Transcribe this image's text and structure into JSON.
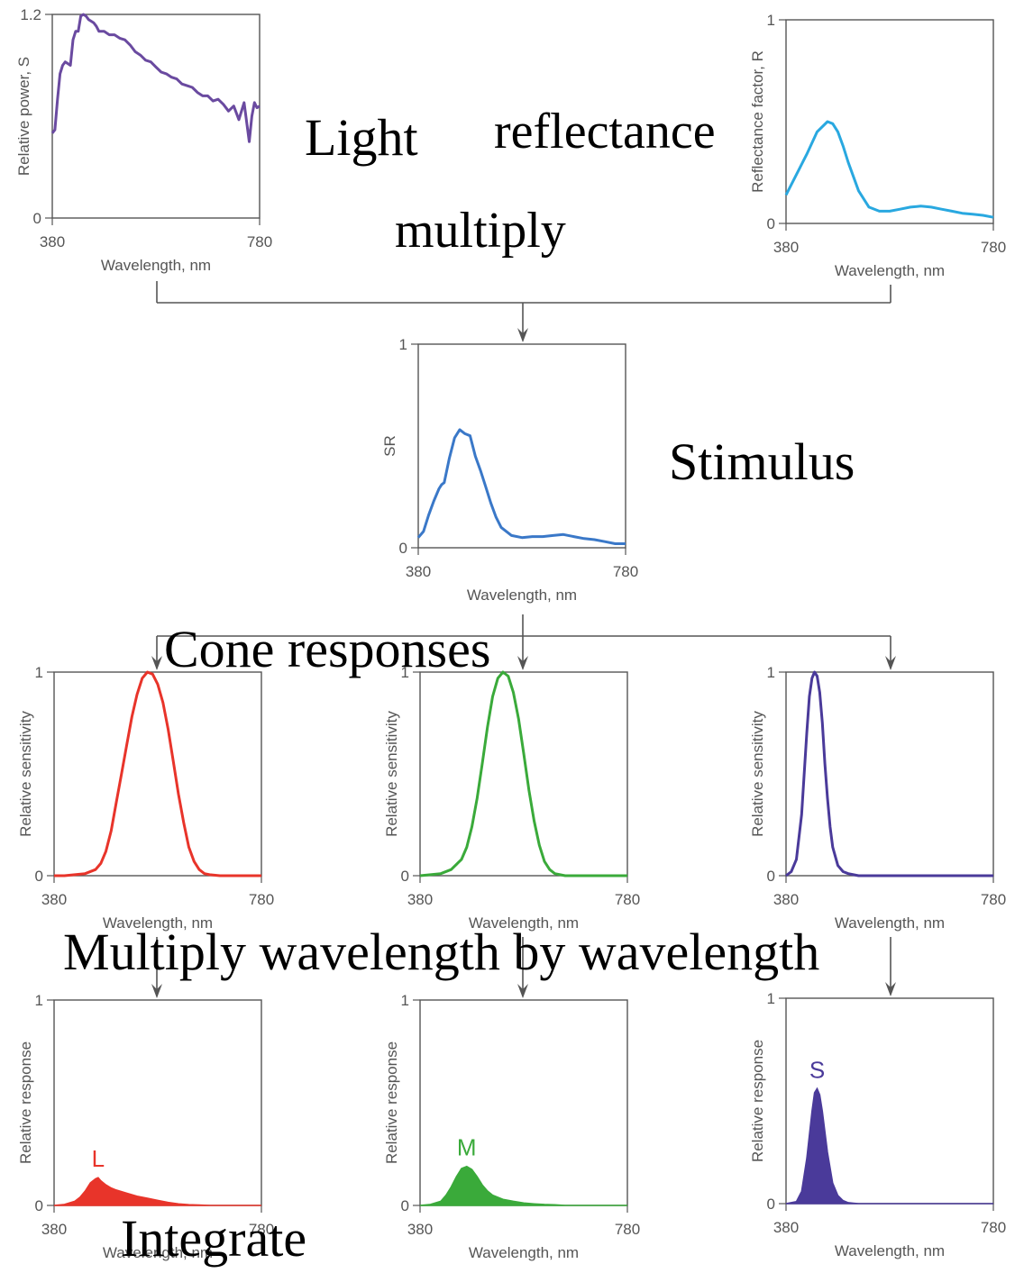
{
  "labels": {
    "light": "Light",
    "reflectance": "reflectance",
    "multiply": "multiply",
    "stimulus": "Stimulus",
    "cone_responses": "Cone responses",
    "multiply_wavelength": "Multiply wavelength by wavelength",
    "integrate": "Integrate"
  },
  "colors": {
    "light": "#6a4aa0",
    "reflectance": "#29a8e0",
    "stimulus": "#3a78c8",
    "L": "#e8342a",
    "M": "#3aaa3a",
    "S": "#4a3a9a",
    "axis": "#555555",
    "arrow": "#555555"
  },
  "chart_data": [
    {
      "id": "light",
      "type": "line",
      "xlabel": "Wavelength, nm",
      "ylabel": "Relative power, S",
      "xlim": [
        380,
        780
      ],
      "ylim": [
        0,
        1.2
      ],
      "x_ticks": [
        "380",
        "780"
      ],
      "y_ticks": [
        "0",
        "1.2"
      ],
      "x": [
        380,
        385,
        390,
        395,
        400,
        405,
        410,
        415,
        420,
        425,
        430,
        435,
        440,
        445,
        450,
        455,
        460,
        465,
        470,
        480,
        490,
        500,
        510,
        520,
        530,
        540,
        550,
        560,
        570,
        580,
        590,
        600,
        610,
        620,
        630,
        640,
        650,
        660,
        670,
        680,
        690,
        700,
        710,
        720,
        730,
        740,
        750,
        760,
        765,
        770,
        775,
        780
      ],
      "values": [
        0.5,
        0.52,
        0.7,
        0.85,
        0.9,
        0.92,
        0.91,
        0.9,
        1.05,
        1.1,
        1.1,
        1.19,
        1.2,
        1.19,
        1.17,
        1.16,
        1.15,
        1.13,
        1.1,
        1.1,
        1.08,
        1.08,
        1.06,
        1.05,
        1.02,
        0.98,
        0.96,
        0.93,
        0.92,
        0.89,
        0.86,
        0.85,
        0.83,
        0.82,
        0.79,
        0.78,
        0.77,
        0.74,
        0.72,
        0.72,
        0.69,
        0.7,
        0.67,
        0.63,
        0.66,
        0.58,
        0.68,
        0.45,
        0.6,
        0.68,
        0.65,
        0.66
      ],
      "color_key": "light"
    },
    {
      "id": "reflectance",
      "type": "line",
      "xlabel": "Wavelength, nm",
      "ylabel": "Reflectance factor, R",
      "xlim": [
        380,
        780
      ],
      "ylim": [
        0,
        1
      ],
      "x_ticks": [
        "380",
        "780"
      ],
      "y_ticks": [
        "0",
        "1"
      ],
      "x": [
        380,
        400,
        420,
        440,
        460,
        470,
        480,
        490,
        500,
        520,
        540,
        560,
        580,
        600,
        620,
        640,
        660,
        680,
        700,
        720,
        740,
        760,
        780
      ],
      "values": [
        0.14,
        0.24,
        0.34,
        0.45,
        0.5,
        0.49,
        0.45,
        0.38,
        0.3,
        0.16,
        0.08,
        0.06,
        0.06,
        0.07,
        0.08,
        0.085,
        0.08,
        0.07,
        0.06,
        0.05,
        0.045,
        0.04,
        0.03
      ],
      "color_key": "reflectance"
    },
    {
      "id": "stimulus",
      "type": "line",
      "xlabel": "Wavelength, nm",
      "ylabel": "SR",
      "xlim": [
        380,
        780
      ],
      "ylim": [
        0,
        1
      ],
      "x_ticks": [
        "380",
        "780"
      ],
      "y_ticks": [
        "0",
        "1"
      ],
      "x": [
        380,
        390,
        400,
        410,
        420,
        425,
        430,
        440,
        450,
        460,
        470,
        480,
        490,
        500,
        510,
        520,
        530,
        540,
        560,
        580,
        600,
        620,
        640,
        660,
        680,
        700,
        720,
        740,
        760,
        780
      ],
      "values": [
        0.05,
        0.08,
        0.16,
        0.23,
        0.29,
        0.31,
        0.32,
        0.44,
        0.54,
        0.58,
        0.56,
        0.55,
        0.45,
        0.38,
        0.3,
        0.22,
        0.15,
        0.1,
        0.06,
        0.05,
        0.055,
        0.055,
        0.06,
        0.065,
        0.055,
        0.045,
        0.04,
        0.03,
        0.02,
        0.02
      ],
      "color_key": "stimulus"
    },
    {
      "id": "cone-L",
      "type": "line",
      "xlabel": "Wavelength, nm",
      "ylabel": "Relative sensitivity",
      "xlim": [
        380,
        780
      ],
      "ylim": [
        0,
        1
      ],
      "x_ticks": [
        "380",
        "780"
      ],
      "y_ticks": [
        "0",
        "1"
      ],
      "x": [
        380,
        400,
        420,
        440,
        460,
        470,
        480,
        490,
        500,
        510,
        520,
        530,
        540,
        550,
        560,
        570,
        580,
        590,
        600,
        610,
        620,
        630,
        640,
        650,
        660,
        670,
        680,
        700,
        720,
        740,
        760,
        780
      ],
      "values": [
        0,
        0,
        0.005,
        0.01,
        0.03,
        0.06,
        0.12,
        0.22,
        0.36,
        0.5,
        0.64,
        0.78,
        0.89,
        0.97,
        1.0,
        0.99,
        0.94,
        0.85,
        0.72,
        0.56,
        0.4,
        0.26,
        0.14,
        0.07,
        0.03,
        0.01,
        0.005,
        0,
        0,
        0,
        0,
        0
      ],
      "color_key": "L"
    },
    {
      "id": "cone-M",
      "type": "line",
      "xlabel": "Wavelength, nm",
      "ylabel": "Relative sensitivity",
      "xlim": [
        380,
        780
      ],
      "ylim": [
        0,
        1
      ],
      "x_ticks": [
        "380",
        "780"
      ],
      "y_ticks": [
        "0",
        "1"
      ],
      "x": [
        380,
        400,
        420,
        440,
        460,
        470,
        480,
        490,
        500,
        510,
        520,
        530,
        540,
        550,
        560,
        570,
        580,
        590,
        600,
        610,
        620,
        630,
        640,
        650,
        660,
        680,
        700,
        720,
        740,
        760,
        780
      ],
      "values": [
        0,
        0.005,
        0.01,
        0.03,
        0.08,
        0.14,
        0.24,
        0.38,
        0.55,
        0.73,
        0.88,
        0.97,
        1.0,
        0.98,
        0.9,
        0.77,
        0.6,
        0.42,
        0.27,
        0.15,
        0.07,
        0.03,
        0.01,
        0.005,
        0,
        0,
        0,
        0,
        0,
        0,
        0
      ],
      "color_key": "M"
    },
    {
      "id": "cone-S",
      "type": "line",
      "xlabel": "Wavelength, nm",
      "ylabel": "Relative sensitivity",
      "xlim": [
        380,
        780
      ],
      "ylim": [
        0,
        1
      ],
      "x_ticks": [
        "380",
        "780"
      ],
      "y_ticks": [
        "0",
        "1"
      ],
      "x": [
        380,
        390,
        400,
        410,
        420,
        425,
        430,
        435,
        440,
        445,
        450,
        455,
        460,
        465,
        470,
        480,
        490,
        500,
        510,
        520,
        540,
        560,
        600,
        650,
        700,
        780
      ],
      "values": [
        0,
        0.02,
        0.08,
        0.3,
        0.7,
        0.88,
        0.97,
        1.0,
        0.98,
        0.9,
        0.75,
        0.55,
        0.38,
        0.24,
        0.14,
        0.05,
        0.02,
        0.01,
        0.005,
        0,
        0,
        0,
        0,
        0,
        0,
        0
      ],
      "color_key": "S"
    },
    {
      "id": "response-L",
      "type": "area",
      "xlabel": "Wavelength, nm",
      "ylabel": "Relative response",
      "xlim": [
        380,
        780
      ],
      "ylim": [
        0,
        1
      ],
      "x_ticks": [
        "380",
        "780"
      ],
      "y_ticks": [
        "0",
        "1"
      ],
      "annotation": "L",
      "x": [
        380,
        400,
        420,
        430,
        440,
        450,
        460,
        465,
        470,
        480,
        490,
        500,
        520,
        540,
        560,
        580,
        600,
        620,
        640,
        660,
        680,
        700,
        720,
        740,
        760,
        780
      ],
      "values": [
        0,
        0.005,
        0.02,
        0.04,
        0.07,
        0.11,
        0.13,
        0.135,
        0.12,
        0.1,
        0.085,
        0.075,
        0.06,
        0.045,
        0.035,
        0.025,
        0.015,
        0.008,
        0.004,
        0.002,
        0,
        0,
        0,
        0,
        0,
        0
      ],
      "color_key": "L"
    },
    {
      "id": "response-M",
      "type": "area",
      "xlabel": "Wavelength, nm",
      "ylabel": "Relative response",
      "xlim": [
        380,
        780
      ],
      "ylim": [
        0,
        1
      ],
      "x_ticks": [
        "380",
        "780"
      ],
      "y_ticks": [
        "0",
        "1"
      ],
      "annotation": "M",
      "x": [
        380,
        400,
        420,
        430,
        440,
        450,
        460,
        470,
        480,
        490,
        500,
        510,
        520,
        540,
        560,
        580,
        600,
        620,
        640,
        660,
        700,
        740,
        780
      ],
      "values": [
        0,
        0.005,
        0.02,
        0.05,
        0.09,
        0.14,
        0.18,
        0.19,
        0.175,
        0.14,
        0.1,
        0.07,
        0.05,
        0.03,
        0.02,
        0.012,
        0.008,
        0.005,
        0.003,
        0,
        0,
        0,
        0
      ],
      "color_key": "M"
    },
    {
      "id": "response-S",
      "type": "area",
      "xlabel": "Wavelength, nm",
      "ylabel": "Relative response",
      "xlim": [
        380,
        780
      ],
      "ylim": [
        0,
        1
      ],
      "x_ticks": [
        "380",
        "780"
      ],
      "y_ticks": [
        "0",
        "1"
      ],
      "annotation": "S",
      "x": [
        380,
        400,
        410,
        420,
        430,
        435,
        440,
        445,
        450,
        460,
        470,
        480,
        490,
        500,
        510,
        520,
        540,
        560,
        600,
        650,
        700,
        780
      ],
      "values": [
        0,
        0.01,
        0.06,
        0.22,
        0.45,
        0.54,
        0.56,
        0.53,
        0.45,
        0.25,
        0.1,
        0.04,
        0.015,
        0.005,
        0.002,
        0,
        0,
        0,
        0,
        0,
        0,
        0
      ],
      "color_key": "S"
    }
  ]
}
